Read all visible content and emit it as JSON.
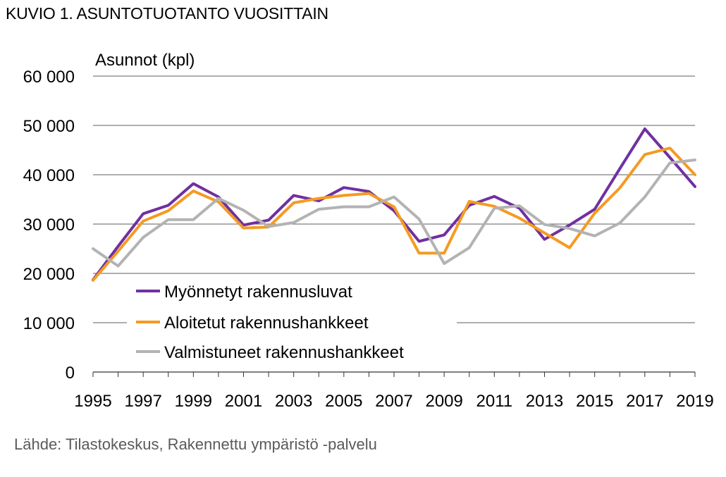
{
  "title": "KUVIO 1. ASUNTOTUOTANTO VUOSITTAIN",
  "source": "Lähde: Tilastokeskus, Rakennettu ympäristö -palvelu",
  "chart_data": {
    "type": "line",
    "title": "KUVIO 1. ASUNTOTUOTANTO VUOSITTAIN",
    "xlabel": "",
    "ylabel": "Asunnot (kpl)",
    "ylim": [
      0,
      60000
    ],
    "yticks": [
      0,
      10000,
      20000,
      30000,
      40000,
      50000,
      60000
    ],
    "ytick_labels": [
      "0",
      "10 000",
      "20 000",
      "30 000",
      "40 000",
      "50 000",
      "60 000"
    ],
    "xlim": [
      1995,
      2019
    ],
    "xtick_labels": [
      "1995",
      "1997",
      "1999",
      "2001",
      "2003",
      "2005",
      "2007",
      "2009",
      "2011",
      "2013",
      "2015",
      "2017",
      "2019"
    ],
    "grid": "horizontal",
    "legend_position": "bottom-left",
    "x": [
      1995,
      1996,
      1997,
      1998,
      1999,
      2000,
      2001,
      2002,
      2003,
      2004,
      2005,
      2006,
      2007,
      2008,
      2009,
      2010,
      2011,
      2012,
      2013,
      2014,
      2015,
      2016,
      2017,
      2018,
      2019
    ],
    "series": [
      {
        "name": "Myönnetyt rakennusluvat",
        "color": "#7030a0",
        "values": [
          18700,
          25500,
          32100,
          33800,
          38200,
          35500,
          29800,
          30800,
          35800,
          34700,
          37400,
          36600,
          32700,
          26500,
          27800,
          33800,
          35600,
          33200,
          26900,
          29800,
          33000,
          41200,
          49300,
          43500,
          37600
        ]
      },
      {
        "name": "Aloitetut rakennushankkeet",
        "color": "#f59a23",
        "values": [
          18600,
          24500,
          30600,
          32700,
          36700,
          34500,
          29200,
          29400,
          34300,
          35200,
          35800,
          36200,
          33500,
          24100,
          24100,
          34600,
          33600,
          31200,
          28200,
          25200,
          32200,
          37300,
          44100,
          45400,
          40000
        ]
      },
      {
        "name": "Valmistuneet rakennushankkeet",
        "color": "#b3b3b3",
        "values": [
          25000,
          21500,
          27300,
          30900,
          30900,
          35200,
          32800,
          29500,
          30300,
          33000,
          33500,
          33500,
          35500,
          31000,
          22000,
          25200,
          33200,
          33700,
          29900,
          29100,
          27600,
          30200,
          35500,
          42400,
          43000
        ]
      }
    ]
  }
}
